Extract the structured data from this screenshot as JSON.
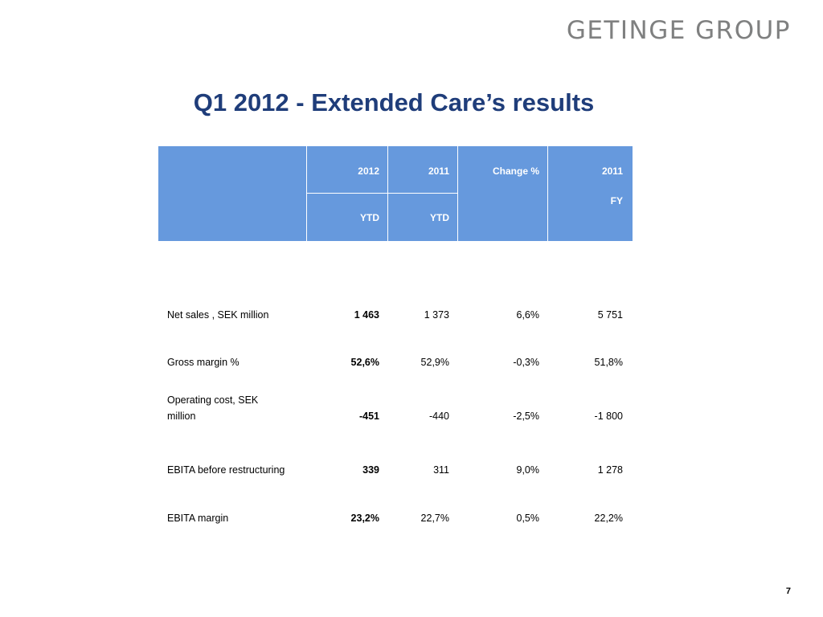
{
  "header": {
    "logo_text": "GETINGE GROUP"
  },
  "title": "Q1 2012 - Extended Care’s results",
  "table": {
    "headers": {
      "col1_line1": "2012",
      "col1_line2": "YTD",
      "col2_line1": "2011",
      "col2_line2": "YTD",
      "col3_line1": "Change %",
      "col4_line1": "2011",
      "col4_line2": "FY"
    },
    "rows": [
      {
        "label": "Net sales , SEK million",
        "v2012": "1 463",
        "v2011": "1 373",
        "change": "6,6%",
        "fy2011": "5 751"
      },
      {
        "label": "Gross margin %",
        "v2012": "52,6%",
        "v2011": "52,9%",
        "change": "-0,3%",
        "fy2011": "51,8%"
      },
      {
        "label": "Operating cost, SEK million",
        "v2012": "-451",
        "v2011": "-440",
        "change": "-2,5%",
        "fy2011": "-1 800"
      },
      {
        "label": "EBITA before restructuring",
        "v2012": "339",
        "v2011": "311",
        "change": "9,0%",
        "fy2011": "1 278"
      },
      {
        "label": "EBITA margin",
        "v2012": "23,2%",
        "v2011": "22,7%",
        "change": "0,5%",
        "fy2011": "22,2%"
      }
    ]
  },
  "footer": {
    "page_number": "7"
  }
}
